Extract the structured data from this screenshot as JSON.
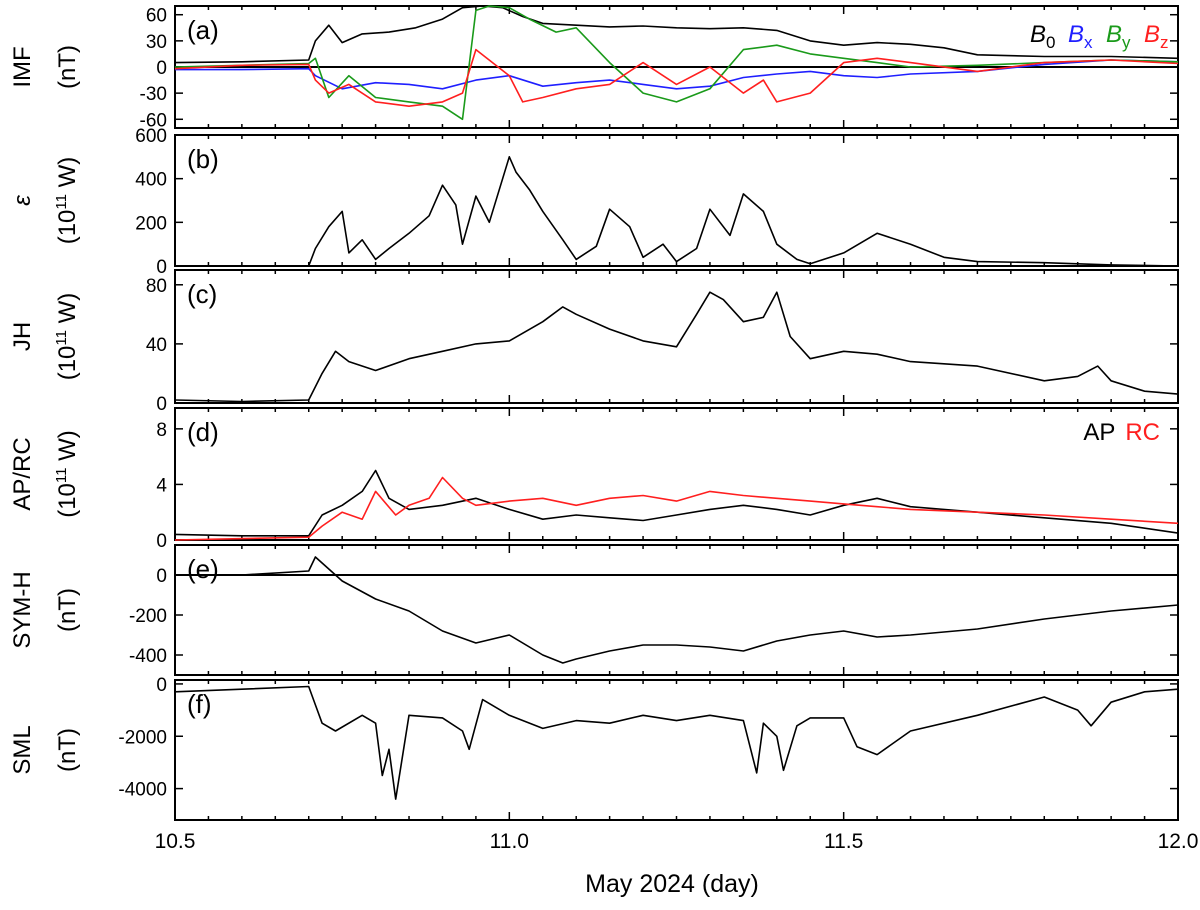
{
  "figure": {
    "xlabel": "May 2024 (day)",
    "xticks": [
      10.5,
      11.0,
      11.5,
      12.0
    ],
    "xtick_labels": [
      "10.5",
      "11.0",
      "11.5",
      "12.0"
    ],
    "xlim": [
      10.5,
      12.0
    ]
  },
  "chart_data": [
    {
      "type": "line",
      "panel": "(a)",
      "ylabel_lines": [
        "IMF",
        "(nT)"
      ],
      "ylim": [
        -70,
        70
      ],
      "yticks": [
        -60,
        -30,
        0,
        30,
        60
      ],
      "zero_line": true,
      "legend": {
        "placement": "top-right",
        "entries": [
          {
            "base": "B",
            "sub": "0",
            "color": "#000000"
          },
          {
            "base": "B",
            "sub": "x",
            "color": "#1f1fff"
          },
          {
            "base": "B",
            "sub": "y",
            "color": "#1a9a1a"
          },
          {
            "base": "B",
            "sub": "z",
            "color": "#ff1f1f"
          }
        ]
      },
      "series": [
        {
          "name": "B0",
          "color": "#000000",
          "x": [
            10.5,
            10.6,
            10.7,
            10.71,
            10.73,
            10.75,
            10.78,
            10.82,
            10.86,
            10.9,
            10.93,
            10.96,
            10.99,
            11.02,
            11.05,
            11.1,
            11.15,
            11.2,
            11.25,
            11.3,
            11.35,
            11.4,
            11.45,
            11.5,
            11.55,
            11.6,
            11.65,
            11.7,
            11.8,
            11.9,
            12.0
          ],
          "y": [
            5,
            6,
            8,
            30,
            48,
            28,
            38,
            40,
            45,
            55,
            68,
            70,
            68,
            58,
            50,
            48,
            46,
            47,
            45,
            44,
            45,
            42,
            30,
            25,
            28,
            26,
            22,
            14,
            12,
            12,
            10
          ]
        },
        {
          "name": "Bx",
          "color": "#1f1fff",
          "x": [
            10.5,
            10.6,
            10.7,
            10.71,
            10.75,
            10.8,
            10.85,
            10.9,
            10.95,
            11.0,
            11.05,
            11.1,
            11.15,
            11.2,
            11.25,
            11.3,
            11.35,
            11.4,
            11.45,
            11.5,
            11.55,
            11.6,
            11.7,
            11.8,
            11.9,
            12.0
          ],
          "y": [
            -3,
            -3,
            -2,
            -10,
            -25,
            -18,
            -20,
            -25,
            -15,
            -10,
            -22,
            -18,
            -15,
            -20,
            -25,
            -22,
            -12,
            -8,
            -5,
            -10,
            -12,
            -8,
            -5,
            3,
            8,
            6
          ]
        },
        {
          "name": "By",
          "color": "#1a9a1a",
          "x": [
            10.5,
            10.6,
            10.7,
            10.71,
            10.73,
            10.76,
            10.8,
            10.85,
            10.9,
            10.93,
            10.95,
            10.97,
            11.0,
            11.03,
            11.07,
            11.1,
            11.15,
            11.2,
            11.25,
            11.3,
            11.35,
            11.4,
            11.45,
            11.5,
            11.55,
            11.6,
            11.7,
            11.8,
            11.9,
            12.0
          ],
          "y": [
            0,
            2,
            4,
            10,
            -35,
            -10,
            -35,
            -40,
            -45,
            -60,
            65,
            70,
            68,
            55,
            40,
            45,
            5,
            -30,
            -40,
            -25,
            20,
            25,
            15,
            10,
            5,
            0,
            2,
            5,
            8,
            6
          ]
        },
        {
          "name": "Bz",
          "color": "#ff1f1f",
          "x": [
            10.5,
            10.6,
            10.7,
            10.71,
            10.73,
            10.76,
            10.8,
            10.85,
            10.9,
            10.93,
            10.95,
            11.0,
            11.02,
            11.05,
            11.1,
            11.15,
            11.2,
            11.25,
            11.3,
            11.35,
            11.38,
            11.4,
            11.45,
            11.5,
            11.55,
            11.6,
            11.7,
            11.8,
            11.9,
            12.0
          ],
          "y": [
            -2,
            2,
            3,
            -15,
            -30,
            -20,
            -40,
            -45,
            -40,
            -30,
            20,
            -10,
            -40,
            -35,
            -25,
            -20,
            5,
            -20,
            0,
            -30,
            -15,
            -40,
            -30,
            5,
            10,
            5,
            -5,
            5,
            8,
            4
          ]
        }
      ]
    },
    {
      "type": "line",
      "panel": "(b)",
      "ylabel_lines": [
        "ε",
        "(10^11 W)"
      ],
      "ylabel_sup": "11",
      "ylim": [
        0,
        600
      ],
      "yticks": [
        0,
        200,
        400,
        600
      ],
      "series": [
        {
          "name": "",
          "color": "#000000",
          "x": [
            10.5,
            10.7,
            10.71,
            10.73,
            10.75,
            10.76,
            10.78,
            10.8,
            10.82,
            10.85,
            10.88,
            10.9,
            10.92,
            10.93,
            10.95,
            10.97,
            11.0,
            11.01,
            11.03,
            11.05,
            11.08,
            11.1,
            11.13,
            11.15,
            11.18,
            11.2,
            11.23,
            11.25,
            11.28,
            11.3,
            11.33,
            11.35,
            11.38,
            11.4,
            11.43,
            11.45,
            11.5,
            11.55,
            11.6,
            11.65,
            11.7,
            11.8,
            11.9,
            12.0
          ],
          "y": [
            0,
            0,
            80,
            180,
            250,
            60,
            120,
            30,
            80,
            150,
            230,
            370,
            280,
            100,
            320,
            200,
            500,
            430,
            350,
            250,
            120,
            30,
            90,
            260,
            180,
            40,
            100,
            20,
            80,
            260,
            140,
            330,
            250,
            100,
            30,
            10,
            60,
            150,
            100,
            40,
            20,
            15,
            5,
            0
          ]
        }
      ]
    },
    {
      "type": "line",
      "panel": "(c)",
      "ylabel_lines": [
        "JH",
        "(10^11 W)"
      ],
      "ylabel_sup": "11",
      "ylim": [
        0,
        90
      ],
      "yticks": [
        0,
        40,
        80
      ],
      "series": [
        {
          "name": "",
          "color": "#000000",
          "x": [
            10.5,
            10.6,
            10.7,
            10.72,
            10.74,
            10.76,
            10.8,
            10.85,
            10.9,
            10.95,
            11.0,
            11.05,
            11.08,
            11.1,
            11.15,
            11.2,
            11.25,
            11.28,
            11.3,
            11.32,
            11.35,
            11.38,
            11.4,
            11.42,
            11.45,
            11.5,
            11.55,
            11.6,
            11.7,
            11.8,
            11.85,
            11.88,
            11.9,
            11.95,
            12.0
          ],
          "y": [
            2,
            1,
            2,
            20,
            35,
            28,
            22,
            30,
            35,
            40,
            42,
            55,
            65,
            60,
            50,
            42,
            38,
            60,
            75,
            70,
            55,
            58,
            75,
            45,
            30,
            35,
            33,
            28,
            25,
            15,
            18,
            25,
            15,
            8,
            6
          ]
        }
      ]
    },
    {
      "type": "line",
      "panel": "(d)",
      "ylabel_lines": [
        "AP/RC",
        "(10^11 W)"
      ],
      "ylabel_sup": "11",
      "ylim": [
        0,
        9.5
      ],
      "yticks": [
        0,
        4,
        8
      ],
      "legend": {
        "placement": "top-right",
        "entries": [
          {
            "label": "AP",
            "color": "#000000"
          },
          {
            "label": "RC",
            "color": "#ff1f1f"
          }
        ]
      },
      "series": [
        {
          "name": "AP",
          "color": "#000000",
          "x": [
            10.5,
            10.6,
            10.7,
            10.72,
            10.75,
            10.78,
            10.8,
            10.82,
            10.85,
            10.9,
            10.95,
            11.0,
            11.05,
            11.1,
            11.15,
            11.2,
            11.25,
            11.3,
            11.35,
            11.4,
            11.45,
            11.5,
            11.55,
            11.6,
            11.7,
            11.8,
            11.9,
            12.0
          ],
          "y": [
            0.4,
            0.3,
            0.3,
            1.8,
            2.5,
            3.5,
            5.0,
            3.0,
            2.2,
            2.5,
            3.0,
            2.2,
            1.5,
            1.8,
            1.6,
            1.4,
            1.8,
            2.2,
            2.5,
            2.2,
            1.8,
            2.5,
            3.0,
            2.4,
            2.0,
            1.6,
            1.2,
            0.5
          ]
        },
        {
          "name": "RC",
          "color": "#ff1f1f",
          "x": [
            10.5,
            10.7,
            10.72,
            10.75,
            10.78,
            10.8,
            10.83,
            10.85,
            10.88,
            10.9,
            10.93,
            10.95,
            11.0,
            11.05,
            11.1,
            11.15,
            11.2,
            11.25,
            11.3,
            11.35,
            11.4,
            11.45,
            11.5,
            11.55,
            11.6,
            11.7,
            11.8,
            11.9,
            12.0
          ],
          "y": [
            0,
            0.2,
            1.0,
            2.0,
            1.5,
            3.5,
            1.8,
            2.5,
            3.0,
            4.5,
            3.0,
            2.5,
            2.8,
            3.0,
            2.5,
            3.0,
            3.2,
            2.8,
            3.5,
            3.2,
            3.0,
            2.8,
            2.6,
            2.4,
            2.2,
            2.0,
            1.8,
            1.5,
            1.2
          ]
        }
      ]
    },
    {
      "type": "line",
      "panel": "(e)",
      "ylabel_lines": [
        "SYM-H",
        "(nT)"
      ],
      "ylim": [
        -500,
        150
      ],
      "yticks": [
        -400,
        -200,
        0
      ],
      "zero_line": true,
      "series": [
        {
          "name": "",
          "color": "#000000",
          "x": [
            10.5,
            10.6,
            10.7,
            10.71,
            10.72,
            10.75,
            10.8,
            10.85,
            10.9,
            10.95,
            11.0,
            11.05,
            11.08,
            11.1,
            11.15,
            11.2,
            11.25,
            11.3,
            11.35,
            11.4,
            11.45,
            11.5,
            11.55,
            11.6,
            11.7,
            11.8,
            11.9,
            12.0
          ],
          "y": [
            0,
            0,
            20,
            90,
            60,
            -30,
            -120,
            -180,
            -280,
            -340,
            -300,
            -400,
            -440,
            -420,
            -380,
            -350,
            -350,
            -360,
            -380,
            -330,
            -300,
            -280,
            -310,
            -300,
            -270,
            -220,
            -180,
            -150
          ]
        }
      ]
    },
    {
      "type": "line",
      "panel": "(f)",
      "ylabel_lines": [
        "SML",
        "(nT)"
      ],
      "ylim": [
        -5200,
        150
      ],
      "yticks": [
        -4000,
        -2000,
        0
      ],
      "series": [
        {
          "name": "",
          "color": "#000000",
          "x": [
            10.5,
            10.6,
            10.7,
            10.71,
            10.72,
            10.74,
            10.78,
            10.8,
            10.81,
            10.82,
            10.83,
            10.85,
            10.9,
            10.93,
            10.94,
            10.96,
            11.0,
            11.05,
            11.1,
            11.15,
            11.2,
            11.25,
            11.3,
            11.35,
            11.37,
            11.38,
            11.4,
            11.41,
            11.43,
            11.45,
            11.5,
            11.52,
            11.55,
            11.6,
            11.7,
            11.8,
            11.85,
            11.87,
            11.9,
            11.95,
            12.0
          ],
          "y": [
            -300,
            -200,
            -100,
            -800,
            -1500,
            -1800,
            -1200,
            -1500,
            -3500,
            -2500,
            -4400,
            -1200,
            -1300,
            -1800,
            -2500,
            -600,
            -1200,
            -1700,
            -1400,
            -1500,
            -1200,
            -1400,
            -1200,
            -1400,
            -3400,
            -1500,
            -2000,
            -3300,
            -1600,
            -1300,
            -1300,
            -2400,
            -2700,
            -1800,
            -1200,
            -500,
            -1000,
            -1600,
            -700,
            -300,
            -200
          ]
        }
      ]
    }
  ]
}
